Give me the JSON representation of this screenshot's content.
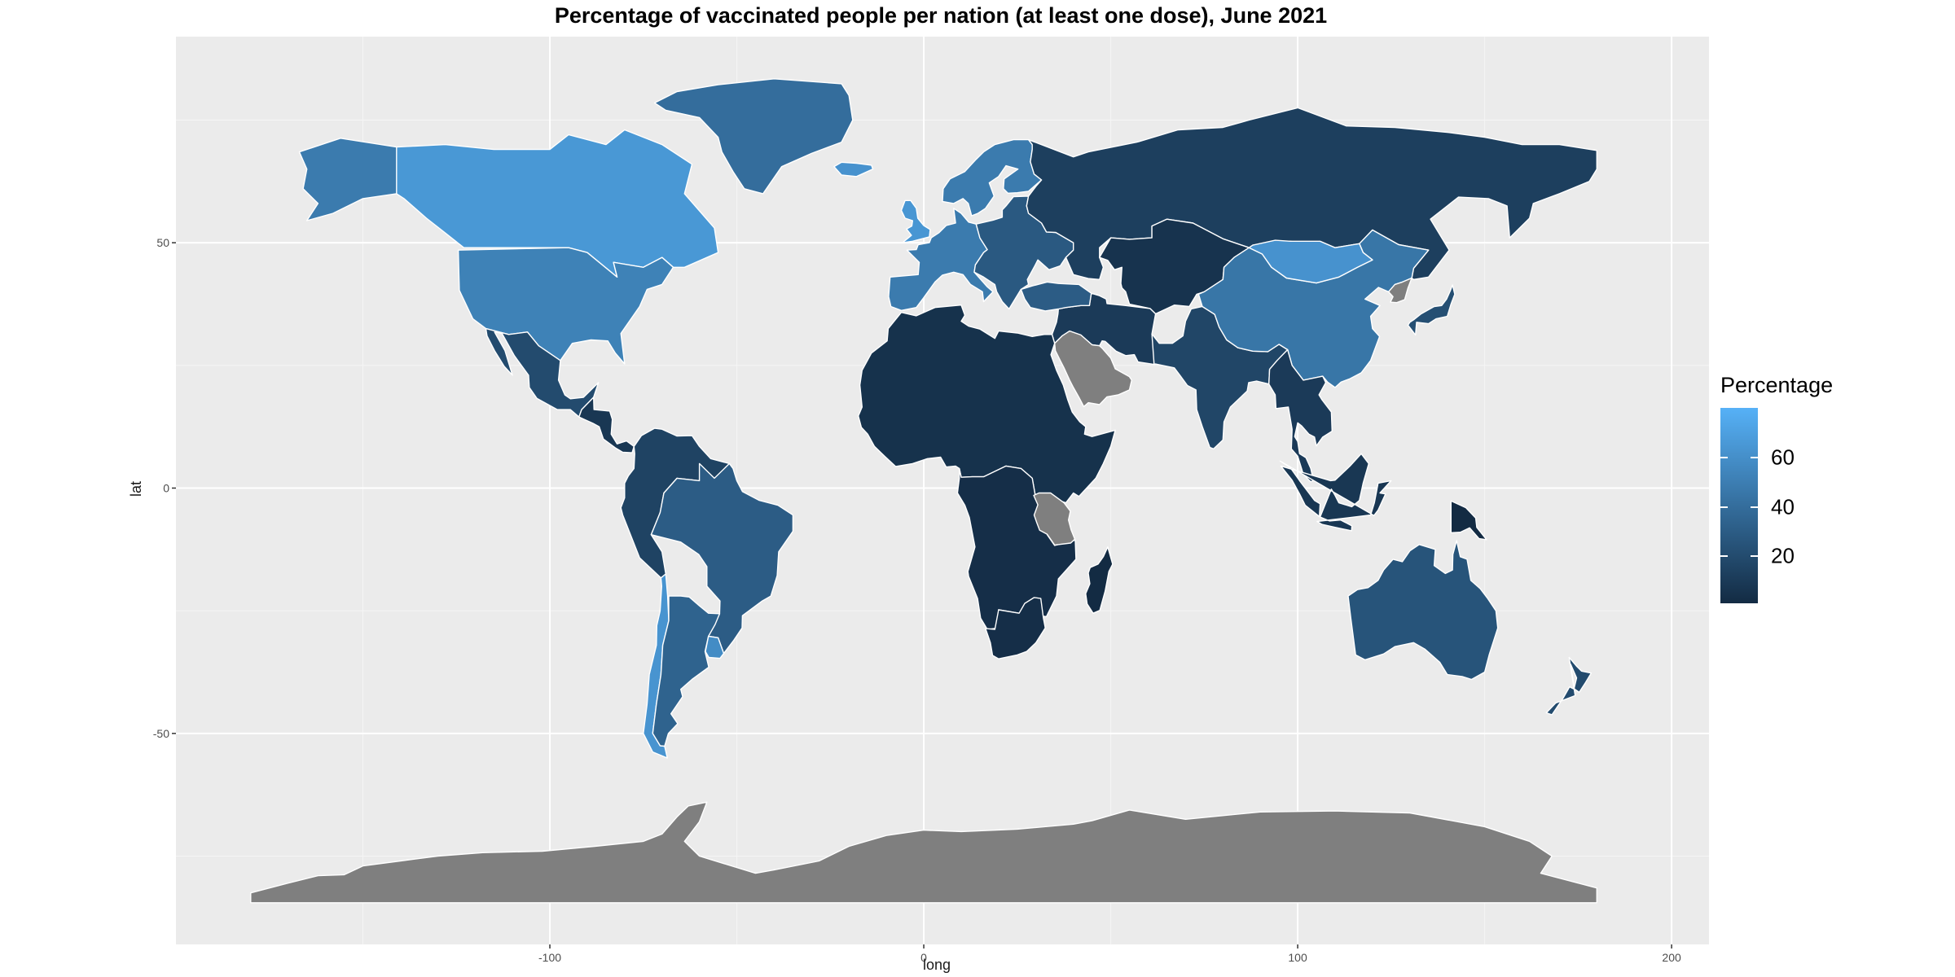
{
  "title": "Percentage of vaccinated people per nation (at least one dose), June 2021",
  "chart_data": {
    "type": "choropleth",
    "xlabel": "long",
    "ylabel": "lat",
    "xlim": [
      -200,
      210
    ],
    "ylim": [
      -93,
      92
    ],
    "x_ticks": [
      -100,
      0,
      100,
      200
    ],
    "y_ticks": [
      -50,
      0,
      50
    ],
    "grid": true,
    "missing_color": "#7f7f7f",
    "panel_background": "#ebebeb",
    "legend": {
      "title": "Percentage",
      "placement": "right",
      "low_color": "#132B43",
      "high_color": "#56B1F7",
      "range": [
        1,
        80
      ],
      "breaks": [
        20,
        40,
        60
      ]
    },
    "regions": [
      {
        "name": "Canada",
        "value": 65
      },
      {
        "name": "Alaska (USA)",
        "value": 48
      },
      {
        "name": "United States",
        "value": 52
      },
      {
        "name": "Mexico",
        "value": 20
      },
      {
        "name": "Central America",
        "value": 8
      },
      {
        "name": "Greenland",
        "value": 40
      },
      {
        "name": "Iceland",
        "value": 62
      },
      {
        "name": "South America (north)",
        "value": 15
      },
      {
        "name": "Brazil",
        "value": 30
      },
      {
        "name": "Chile",
        "value": 63
      },
      {
        "name": "Argentina",
        "value": 34
      },
      {
        "name": "Uruguay",
        "value": 58
      },
      {
        "name": "United Kingdom",
        "value": 64
      },
      {
        "name": "Europe (west)",
        "value": 48
      },
      {
        "name": "Europe (east)",
        "value": 28
      },
      {
        "name": "Scandinavia",
        "value": 48
      },
      {
        "name": "Russia",
        "value": 13
      },
      {
        "name": "Central Asia",
        "value": 6
      },
      {
        "name": "Middle East",
        "value": 10
      },
      {
        "name": "Saudi Arabia",
        "value": null
      },
      {
        "name": "Turkey",
        "value": 30
      },
      {
        "name": "Africa (north)",
        "value": 5
      },
      {
        "name": "Africa (central & south)",
        "value": 3
      },
      {
        "name": "Tanzania",
        "value": null
      },
      {
        "name": "Madagascar",
        "value": 1
      },
      {
        "name": "South Africa",
        "value": 3
      },
      {
        "name": "India",
        "value": 17
      },
      {
        "name": "China",
        "value": 45
      },
      {
        "name": "Mongolia",
        "value": 62
      },
      {
        "name": "North Korea",
        "value": null
      },
      {
        "name": "Japan",
        "value": 22
      },
      {
        "name": "Southeast Asia",
        "value": 10
      },
      {
        "name": "Indonesia",
        "value": 8
      },
      {
        "name": "Papua New Guinea",
        "value": 1
      },
      {
        "name": "Australia",
        "value": 25
      },
      {
        "name": "New Zealand",
        "value": 20
      },
      {
        "name": "Antarctica",
        "value": null
      }
    ]
  }
}
